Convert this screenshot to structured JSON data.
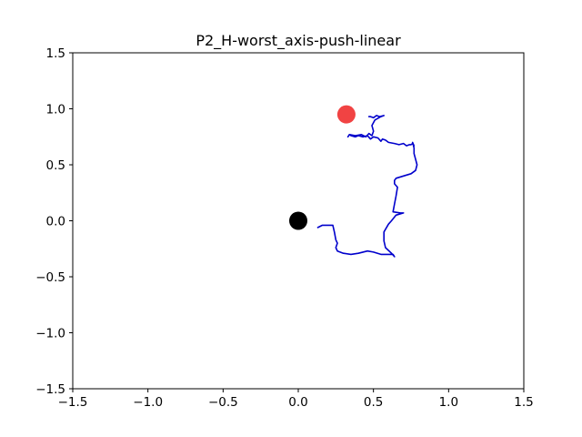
{
  "chart_data": {
    "type": "line",
    "title": "P2_H-worst_axis-push-linear",
    "xlabel": "",
    "ylabel": "",
    "xlim": [
      -1.5,
      1.5
    ],
    "ylim": [
      -1.5,
      1.5
    ],
    "x_ticks": [
      -1.5,
      -1.0,
      -0.5,
      0.0,
      0.5,
      1.0,
      1.5
    ],
    "y_ticks": [
      -1.5,
      -1.0,
      -0.5,
      0.0,
      0.5,
      1.0,
      1.5
    ],
    "x_tick_labels": [
      "−1.5",
      "−1.0",
      "−0.5",
      "0.0",
      "0.5",
      "1.0",
      "1.5"
    ],
    "y_tick_labels": [
      "−1.5",
      "−1.0",
      "−0.5",
      "0.0",
      "0.5",
      "1.0",
      "1.5"
    ],
    "grid": false,
    "legend": "none",
    "series": [
      {
        "color": "#0000cc",
        "x": [
          0.13,
          0.16,
          0.2,
          0.23,
          0.24,
          0.25,
          0.26,
          0.25,
          0.26,
          0.3,
          0.35,
          0.4,
          0.46,
          0.5,
          0.55,
          0.6,
          0.63,
          0.64,
          0.62,
          0.58,
          0.57,
          0.57,
          0.6,
          0.62,
          0.65,
          0.7,
          0.68,
          0.63,
          0.64,
          0.65,
          0.66,
          0.64,
          0.64,
          0.65,
          0.7,
          0.75,
          0.78,
          0.79,
          0.78,
          0.77,
          0.77,
          0.76,
          0.77,
          0.76,
          0.75,
          0.74,
          0.72,
          0.7,
          0.67,
          0.64,
          0.6,
          0.58,
          0.56,
          0.55,
          0.53,
          0.5,
          0.48,
          0.46,
          0.43,
          0.4,
          0.38,
          0.35,
          0.34,
          0.33,
          0.34,
          0.38,
          0.42,
          0.45,
          0.47,
          0.49,
          0.5,
          0.49,
          0.51,
          0.55,
          0.57,
          0.54,
          0.52,
          0.5,
          0.48,
          0.47
        ],
        "y": [
          -0.06,
          -0.04,
          -0.04,
          -0.04,
          -0.1,
          -0.17,
          -0.2,
          -0.24,
          -0.27,
          -0.29,
          -0.3,
          -0.29,
          -0.27,
          -0.28,
          -0.3,
          -0.3,
          -0.3,
          -0.32,
          -0.29,
          -0.24,
          -0.18,
          -0.1,
          -0.03,
          0.0,
          0.05,
          0.07,
          0.07,
          0.08,
          0.15,
          0.22,
          0.3,
          0.33,
          0.36,
          0.38,
          0.4,
          0.42,
          0.45,
          0.5,
          0.55,
          0.6,
          0.65,
          0.7,
          0.67,
          0.69,
          0.68,
          0.68,
          0.67,
          0.69,
          0.68,
          0.69,
          0.7,
          0.72,
          0.73,
          0.71,
          0.74,
          0.75,
          0.73,
          0.76,
          0.75,
          0.76,
          0.75,
          0.76,
          0.77,
          0.75,
          0.77,
          0.76,
          0.77,
          0.75,
          0.78,
          0.76,
          0.8,
          0.85,
          0.9,
          0.93,
          0.94,
          0.93,
          0.94,
          0.92,
          0.93,
          0.93
        ]
      }
    ],
    "points": [
      {
        "x": 0.0,
        "y": 0.0,
        "color": "#000000",
        "role": "start"
      },
      {
        "x": 0.32,
        "y": 0.95,
        "color": "#ee2222",
        "role": "goal"
      }
    ]
  }
}
